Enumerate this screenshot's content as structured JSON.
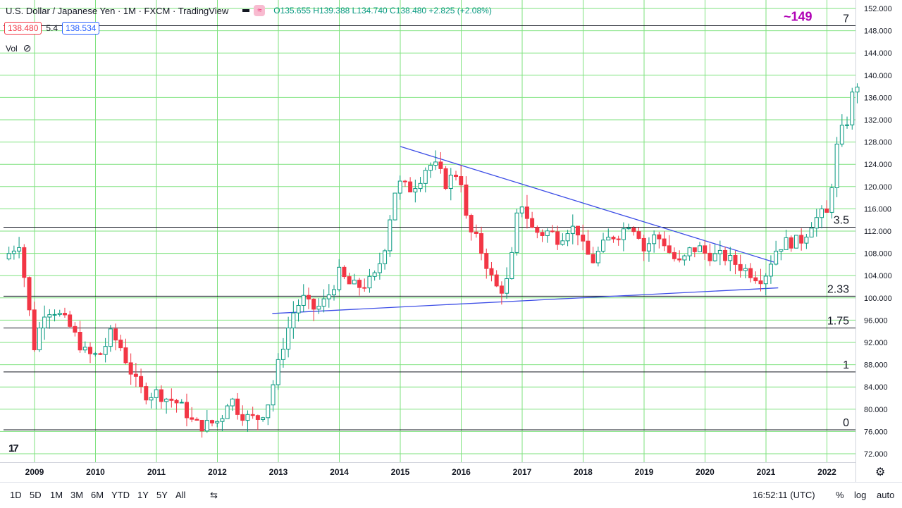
{
  "header": {
    "title": "U.S. Dollar / Japanese Yen · 1M · FXCM · TradingView",
    "wave_icon": "≈",
    "ohlc": "O135.655 H139.388 L134.740 C138.480 +2.825 (+2.08%)"
  },
  "price_row": {
    "sell": "138.480",
    "spread": "5.4",
    "buy": "138.534"
  },
  "volume": {
    "label": "Vol",
    "eye_icon": "eye-off-icon"
  },
  "toolbar": {
    "timeframes": [
      "1D",
      "5D",
      "1M",
      "3M",
      "6M",
      "YTD",
      "1Y",
      "5Y",
      "All"
    ],
    "compare_icon": "compare-icon",
    "clock": "16:52:11 (UTC)",
    "percent": "%",
    "log": "log",
    "auto": "auto",
    "settings_icon": "gear-icon"
  },
  "colors": {
    "up": "#089981",
    "down": "#f23645",
    "grid": "#7ee27e",
    "trend": "#3d4ee6",
    "annotation": "#b000b5"
  },
  "chart_data": {
    "type": "candlestick",
    "interval": "1M",
    "symbol": "USD/JPY",
    "ylim": [
      72,
      152
    ],
    "y_ticks": [
      "152.000",
      "148.000",
      "144.000",
      "140.000",
      "136.000",
      "132.000",
      "128.000",
      "124.000",
      "120.000",
      "116.000",
      "112.000",
      "108.000",
      "104.000",
      "100.000",
      "96.000",
      "92.000",
      "88.000",
      "84.000",
      "80.000",
      "76.000",
      "72.000"
    ],
    "x_ticks": [
      "2009",
      "2010",
      "2011",
      "2012",
      "2013",
      "2014",
      "2015",
      "2016",
      "2017",
      "2018",
      "2019",
      "2020",
      "2021",
      "2022"
    ],
    "horizontal_levels": [
      {
        "price": 148.9,
        "label": "7"
      },
      {
        "price": 112.7,
        "label": "3.5"
      },
      {
        "price": 100.3,
        "label": "2.33"
      },
      {
        "price": 94.6,
        "label": "1.75"
      },
      {
        "price": 86.7,
        "label": "1"
      },
      {
        "price": 76.3,
        "label": "0"
      }
    ],
    "annotation": "~149",
    "trendlines": [
      {
        "from": [
          2015.0,
          127.2
        ],
        "to": [
          2021.2,
          106.2
        ]
      },
      {
        "from": [
          2012.9,
          97.2
        ],
        "to": [
          2021.2,
          101.8
        ]
      }
    ],
    "anchors": [
      [
        2008.58,
        108.0
      ],
      [
        2008.75,
        110.0
      ],
      [
        2008.9,
        98.5
      ],
      [
        2009.0,
        91.0
      ],
      [
        2009.15,
        97.5
      ],
      [
        2009.3,
        98.0
      ],
      [
        2009.45,
        96.5
      ],
      [
        2009.6,
        94.5
      ],
      [
        2009.8,
        90.5
      ],
      [
        2009.95,
        89.5
      ],
      [
        2010.1,
        90.0
      ],
      [
        2010.25,
        93.5
      ],
      [
        2010.4,
        91.5
      ],
      [
        2010.55,
        87.5
      ],
      [
        2010.7,
        84.0
      ],
      [
        2010.85,
        82.5
      ],
      [
        2011.0,
        83.0
      ],
      [
        2011.15,
        82.0
      ],
      [
        2011.3,
        81.5
      ],
      [
        2011.45,
        80.0
      ],
      [
        2011.6,
        77.5
      ],
      [
        2011.75,
        77.0
      ],
      [
        2011.9,
        77.5
      ],
      [
        2012.05,
        78.0
      ],
      [
        2012.2,
        82.5
      ],
      [
        2012.35,
        79.5
      ],
      [
        2012.5,
        78.5
      ],
      [
        2012.65,
        78.3
      ],
      [
        2012.8,
        80.0
      ],
      [
        2012.95,
        86.0
      ],
      [
        2013.1,
        92.5
      ],
      [
        2013.25,
        97.5
      ],
      [
        2013.4,
        100.0
      ],
      [
        2013.55,
        98.0
      ],
      [
        2013.7,
        98.5
      ],
      [
        2013.85,
        101.0
      ],
      [
        2014.0,
        104.5
      ],
      [
        2014.15,
        102.5
      ],
      [
        2014.3,
        102.0
      ],
      [
        2014.45,
        102.5
      ],
      [
        2014.6,
        104.0
      ],
      [
        2014.75,
        109.5
      ],
      [
        2014.9,
        119.0
      ],
      [
        2015.0,
        120.5
      ],
      [
        2015.15,
        119.5
      ],
      [
        2015.3,
        121.0
      ],
      [
        2015.45,
        124.0
      ],
      [
        2015.6,
        123.5
      ],
      [
        2015.75,
        120.5
      ],
      [
        2015.9,
        122.5
      ],
      [
        2016.0,
        121.0
      ],
      [
        2016.1,
        112.5
      ],
      [
        2016.25,
        110.5
      ],
      [
        2016.4,
        106.5
      ],
      [
        2016.55,
        102.0
      ],
      [
        2016.7,
        101.5
      ],
      [
        2016.8,
        104.5
      ],
      [
        2016.9,
        114.0
      ],
      [
        2017.0,
        117.0
      ],
      [
        2017.15,
        112.5
      ],
      [
        2017.3,
        111.5
      ],
      [
        2017.45,
        112.0
      ],
      [
        2017.6,
        110.5
      ],
      [
        2017.75,
        112.5
      ],
      [
        2017.9,
        112.5
      ],
      [
        2018.0,
        109.0
      ],
      [
        2018.15,
        106.5
      ],
      [
        2018.3,
        109.0
      ],
      [
        2018.45,
        111.0
      ],
      [
        2018.6,
        111.5
      ],
      [
        2018.75,
        113.5
      ],
      [
        2018.9,
        112.0
      ],
      [
        2019.0,
        108.5
      ],
      [
        2019.15,
        111.0
      ],
      [
        2019.3,
        110.5
      ],
      [
        2019.45,
        107.5
      ],
      [
        2019.6,
        106.0
      ],
      [
        2019.75,
        108.5
      ],
      [
        2019.9,
        109.0
      ],
      [
        2020.0,
        108.0
      ],
      [
        2020.15,
        107.5
      ],
      [
        2020.3,
        107.5
      ],
      [
        2020.45,
        106.5
      ],
      [
        2020.6,
        105.5
      ],
      [
        2020.75,
        104.5
      ],
      [
        2020.9,
        103.5
      ],
      [
        2021.0,
        104.5
      ],
      [
        2021.15,
        108.5
      ],
      [
        2021.3,
        110.0
      ],
      [
        2021.45,
        110.0
      ],
      [
        2021.6,
        110.5
      ],
      [
        2021.75,
        113.5
      ],
      [
        2021.9,
        115.0
      ],
      [
        2022.0,
        115.0
      ],
      [
        2022.1,
        122.0
      ],
      [
        2022.2,
        130.0
      ],
      [
        2022.3,
        130.0
      ],
      [
        2022.4,
        136.0
      ],
      [
        2022.5,
        138.5
      ]
    ]
  }
}
